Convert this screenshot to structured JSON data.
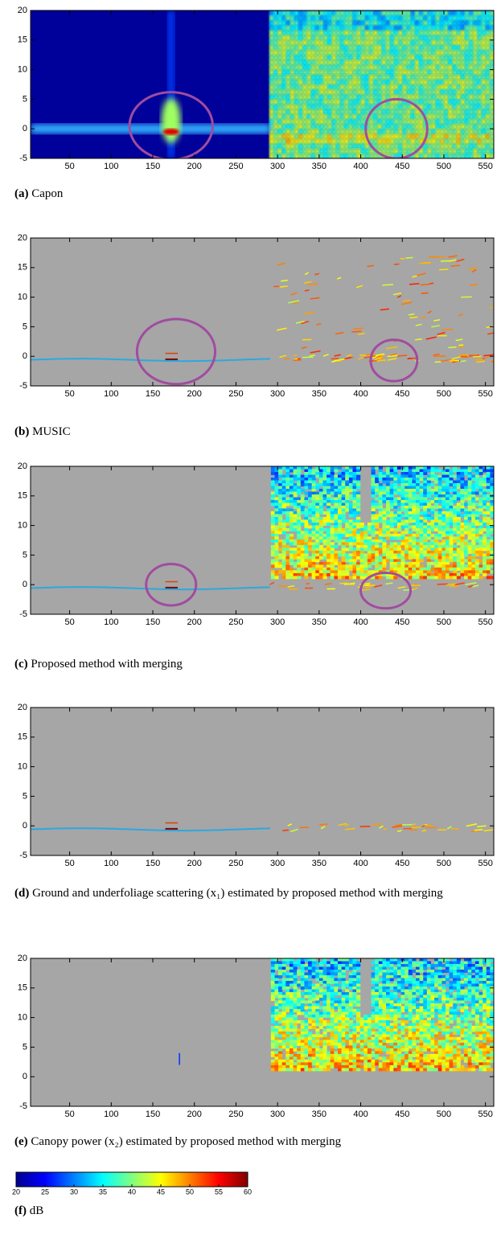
{
  "chart_data": [
    {
      "type": "heatmap",
      "label": "(a)",
      "caption": "Capon",
      "xlim": [
        3,
        560
      ],
      "ylim": [
        -5,
        20
      ],
      "xticks": [
        50,
        100,
        150,
        200,
        250,
        300,
        350,
        400,
        450,
        500,
        550
      ],
      "yticks": [
        -5,
        0,
        5,
        10,
        15,
        20
      ]
    },
    {
      "type": "heatmap",
      "label": "(b)",
      "caption": "MUSIC",
      "xlim": [
        3,
        560
      ],
      "ylim": [
        -5,
        20
      ],
      "xticks": [
        50,
        100,
        150,
        200,
        250,
        300,
        350,
        400,
        450,
        500,
        550
      ],
      "yticks": [
        -5,
        0,
        5,
        10,
        15,
        20
      ]
    },
    {
      "type": "heatmap",
      "label": "(c)",
      "caption": "Proposed method with merging",
      "xlim": [
        3,
        560
      ],
      "ylim": [
        -5,
        20
      ],
      "xticks": [
        50,
        100,
        150,
        200,
        250,
        300,
        350,
        400,
        450,
        500,
        550
      ],
      "yticks": [
        -5,
        0,
        5,
        10,
        15,
        20
      ]
    },
    {
      "type": "heatmap",
      "label": "(d)",
      "caption": "Ground and underfoliage scattering (x₁) estimated by proposed method with merging",
      "xlim": [
        3,
        560
      ],
      "ylim": [
        -5,
        20
      ],
      "xticks": [
        50,
        100,
        150,
        200,
        250,
        300,
        350,
        400,
        450,
        500,
        550
      ],
      "yticks": [
        -5,
        0,
        5,
        10,
        15,
        20
      ]
    },
    {
      "type": "heatmap",
      "label": "(e)",
      "caption": "Canopy power (x₂) estimated by proposed method with merging",
      "xlim": [
        3,
        560
      ],
      "ylim": [
        -5,
        20
      ],
      "xticks": [
        50,
        100,
        150,
        200,
        250,
        300,
        350,
        400,
        450,
        500,
        550
      ],
      "yticks": [
        -5,
        0,
        5,
        10,
        15,
        20
      ]
    },
    {
      "type": "colorbar",
      "label": "(f)",
      "caption": "dB",
      "xlim": [
        20,
        60
      ],
      "xticks": [
        20,
        25,
        30,
        35,
        40,
        45,
        50,
        55,
        60
      ]
    }
  ]
}
